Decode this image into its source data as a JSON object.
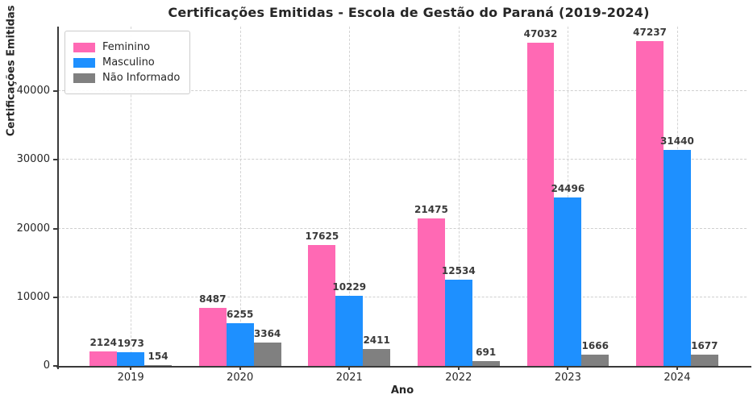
{
  "chart_data": {
    "type": "bar",
    "title": "Certificações Emitidas - Escola de Gestão do Paraná (2019-2024)",
    "xlabel": "Ano",
    "ylabel": "Certificações Emitidas",
    "categories": [
      "2019",
      "2020",
      "2021",
      "2022",
      "2023",
      "2024"
    ],
    "series": [
      {
        "name": "Feminino",
        "color": "#FF69B4",
        "values": [
          2124,
          8487,
          17625,
          21475,
          47032,
          47237
        ]
      },
      {
        "name": "Masculino",
        "color": "#1E90FF",
        "values": [
          1973,
          6255,
          10229,
          12534,
          24496,
          31440
        ]
      },
      {
        "name": "Não Informado",
        "color": "#808080",
        "values": [
          154,
          3364,
          2411,
          691,
          1666,
          1677
        ]
      }
    ],
    "yticks": [
      0,
      10000,
      20000,
      30000,
      40000
    ],
    "ylim": [
      0,
      49400
    ],
    "grid": true,
    "grid_style": "dashed",
    "legend_position": "upper left",
    "bar_value_labels": true,
    "value_label_color": "#3a3a3a",
    "axis_color": "#3a3a3a",
    "text_color": "#262626"
  }
}
